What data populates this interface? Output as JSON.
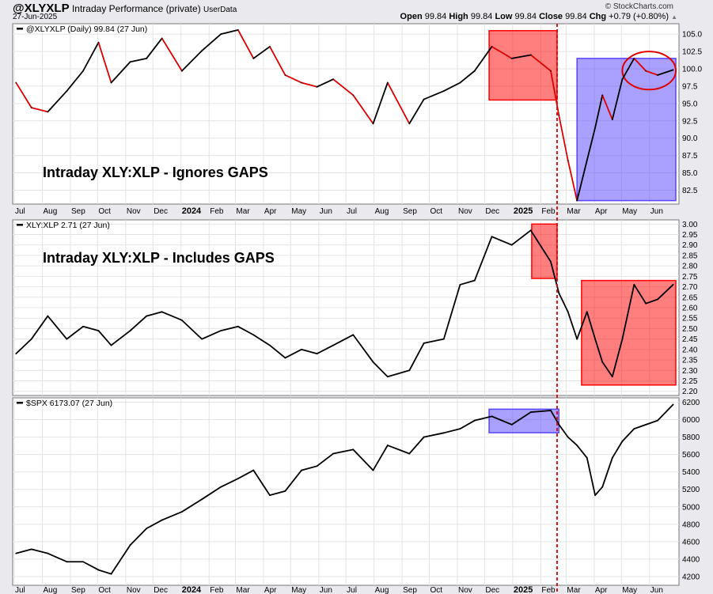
{
  "header": {
    "symbol": "@XLYXLP",
    "subtitle": "Intraday Performance (private)",
    "userdata": "UserData",
    "date": "27-Jun-2025",
    "brand": "© StockCharts.com",
    "open_label": "Open",
    "open": "99.84",
    "high_label": "High",
    "high": "99.84",
    "low_label": "Low",
    "low": "99.84",
    "close_label": "Close",
    "close": "99.84",
    "chg_label": "Chg",
    "chg": "+0.79 (+0.80%)"
  },
  "chart_data": [
    {
      "type": "line",
      "title": "@XLYXLP (Daily) 99.84 (27 Jun)",
      "annotation": "Intraday XLY:XLP - Ignores GAPS",
      "ylim": [
        80.5,
        106.5
      ],
      "yticks": [
        82.5,
        85,
        87.5,
        90,
        92.5,
        95,
        97.5,
        100,
        102.5,
        105
      ],
      "decimals": 1,
      "line_color": "#000000",
      "down_color": "#dd0000",
      "highlights": [
        {
          "x0": "2024-12-06",
          "x1": "2025-02-19",
          "y0": 95.5,
          "y1": 105.5,
          "color": "#ff0000"
        },
        {
          "x0": "2025-03-13",
          "x1": "2025-06-30",
          "y0": 81,
          "y1": 101.5,
          "color": "#5544ff"
        }
      ],
      "circle": {
        "x0": "2025-05-02",
        "x1": "2025-06-30",
        "y0": 97,
        "y1": 102.5,
        "color": "#e00000"
      },
      "values": [
        98,
        94.4,
        93.8,
        96.8,
        99.7,
        103.8,
        98,
        101,
        101.5,
        104.4,
        99.7,
        102.6,
        105,
        105.6,
        101.5,
        103.2,
        99.1,
        98,
        97.4,
        98.5,
        96.2,
        92.1,
        98,
        92.1,
        95.6,
        96.8,
        98,
        99.7,
        103.2,
        101.5,
        102,
        99.7,
        93.3,
        86.8,
        81,
        86.8,
        91.5,
        96.2,
        92.7,
        98.5,
        101.5,
        99.7,
        99.1,
        99.84
      ]
    },
    {
      "type": "line",
      "title": "XLY:XLP 2.71 (27 Jun)",
      "annotation": "Intraday XLY:XLP - Includes GAPS",
      "ylim": [
        2.18,
        3.02
      ],
      "yticks": [
        2.2,
        2.25,
        2.3,
        2.35,
        2.4,
        2.45,
        2.5,
        2.55,
        2.6,
        2.65,
        2.7,
        2.75,
        2.8,
        2.85,
        2.9,
        2.95,
        3.0
      ],
      "decimals": 2,
      "line_color": "#000000",
      "highlights": [
        {
          "x0": "2025-01-22",
          "x1": "2025-02-19",
          "y0": 2.74,
          "y1": 3.0,
          "color": "#ff0000"
        },
        {
          "x0": "2025-03-18",
          "x1": "2025-06-30",
          "y0": 2.23,
          "y1": 2.73,
          "color": "#ff0000"
        }
      ],
      "values": [
        2.38,
        2.45,
        2.56,
        2.45,
        2.51,
        2.49,
        2.42,
        2.49,
        2.56,
        2.58,
        2.54,
        2.45,
        2.49,
        2.51,
        2.47,
        2.42,
        2.36,
        2.4,
        2.38,
        2.42,
        2.47,
        2.34,
        2.27,
        2.3,
        2.43,
        2.45,
        2.71,
        2.73,
        2.94,
        2.9,
        2.97,
        2.82,
        2.67,
        2.58,
        2.45,
        2.58,
        2.45,
        2.34,
        2.27,
        2.45,
        2.71,
        2.62,
        2.64,
        2.71
      ]
    },
    {
      "type": "line",
      "title": "$SPX 6173.07 (27 Jun)",
      "annotation": "",
      "ylim": [
        4100,
        6250
      ],
      "yticks": [
        4200,
        4400,
        4600,
        4800,
        5000,
        5200,
        5400,
        5600,
        5800,
        6000,
        6200
      ],
      "decimals": 0,
      "line_color": "#000000",
      "highlights": [
        {
          "x0": "2024-12-06",
          "x1": "2025-02-21",
          "y0": 5850,
          "y1": 6120,
          "color": "#5544ff"
        }
      ],
      "values": [
        4466,
        4514,
        4466,
        4370,
        4370,
        4276,
        4230,
        4562,
        4752,
        4848,
        4943,
        5086,
        5228,
        5324,
        5419,
        5133,
        5181,
        5419,
        5467,
        5610,
        5657,
        5419,
        5705,
        5610,
        5800,
        5848,
        5895,
        5990,
        6038,
        5943,
        6086,
        6105,
        5943,
        5800,
        5705,
        5562,
        5133,
        5228,
        5562,
        5752,
        5895,
        5943,
        5990,
        6173
      ]
    }
  ],
  "dates": [
    "2023-07-03",
    "2023-07-20",
    "2023-08-07",
    "2023-08-28",
    "2023-09-15",
    "2023-10-02",
    "2023-10-16",
    "2023-11-06",
    "2023-11-24",
    "2023-12-11",
    "2024-01-02",
    "2024-01-24",
    "2024-02-14",
    "2024-03-04",
    "2024-03-21",
    "2024-04-08",
    "2024-04-25",
    "2024-05-13",
    "2024-05-30",
    "2024-06-17",
    "2024-07-09",
    "2024-07-31",
    "2024-08-16",
    "2024-09-09",
    "2024-09-25",
    "2024-10-17",
    "2024-11-04",
    "2024-11-20",
    "2024-12-09",
    "2024-12-31",
    "2025-01-21",
    "2025-02-12",
    "2025-02-21",
    "2025-03-03",
    "2025-03-13",
    "2025-03-24",
    "2025-04-02",
    "2025-04-10",
    "2025-04-21",
    "2025-05-02",
    "2025-05-15",
    "2025-05-28",
    "2025-06-10",
    "2025-06-27"
  ],
  "marker_date": "2025-02-19",
  "xaxis": {
    "start": "2023-07-01",
    "end": "2025-06-30",
    "labels": [
      "Jul",
      "Aug",
      "Sep",
      "Oct",
      "Nov",
      "Dec",
      "2024",
      "Feb",
      "Mar",
      "Apr",
      "May",
      "Jun",
      "Jul",
      "Aug",
      "Sep",
      "Oct",
      "Nov",
      "Dec",
      "2025",
      "Feb",
      "Mar",
      "Apr",
      "May",
      "Jun"
    ]
  }
}
